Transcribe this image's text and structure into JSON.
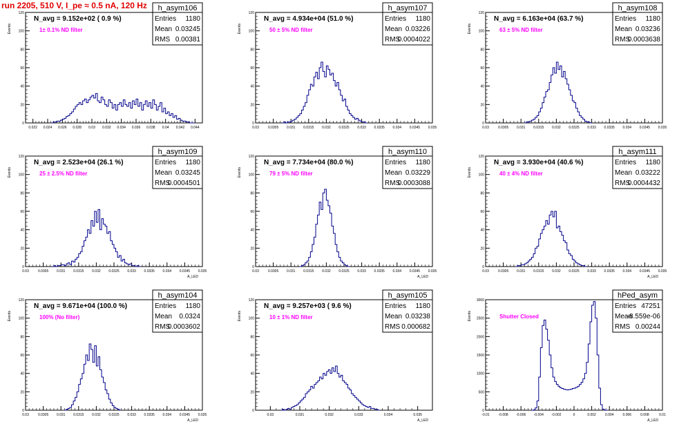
{
  "header": {
    "title": "run 2205,    510 V, I_pe ≈ 0.5 nA, 120 Hz"
  },
  "colors": {
    "title": "#e00000",
    "histogram": "#00008b",
    "filter_label": "#ff00ff",
    "frame": "#000000"
  },
  "chart_data": [
    {
      "type": "histogram",
      "name": "h_asym106",
      "stats": {
        "entries": "1180",
        "mean": "0.03245",
        "rms": "0.00381"
      },
      "navg_label": "N_avg = 9.152e+02 ( 0.9 %)",
      "filter_label": "1± 0.1% ND filter",
      "ylabel": "Events",
      "xlabel": "",
      "xlim": [
        0.021,
        0.045
      ],
      "ylim": [
        0,
        120
      ],
      "xticks": [
        0.022,
        0.024,
        0.026,
        0.028,
        0.03,
        0.032,
        0.034,
        0.036,
        0.038,
        0.04,
        0.042,
        0.044
      ],
      "xticklabels": [
        "0.022",
        "0.024",
        "0.026",
        "0.028",
        "0.03",
        "0.032",
        "0.034",
        "0.036",
        "0.038",
        "0.04",
        "0.042",
        "0.044"
      ],
      "yticks": [
        0,
        20,
        40,
        60,
        80,
        100,
        120
      ],
      "yticklabels": [
        "0",
        "20",
        "40",
        "60",
        "80",
        "100",
        "120"
      ],
      "bin_start": 0.0245,
      "bin_width": 0.00025,
      "values": [
        0,
        1,
        1,
        2,
        2,
        3,
        4,
        5,
        7,
        8,
        10,
        12,
        15,
        18,
        20,
        22,
        20,
        24,
        26,
        22,
        25,
        28,
        30,
        27,
        32,
        24,
        22,
        28,
        25,
        20,
        18,
        25,
        22,
        16,
        20,
        14,
        20,
        22,
        18,
        25,
        20,
        18,
        22,
        16,
        24,
        20,
        26,
        18,
        22,
        14,
        20,
        24,
        18,
        22,
        16,
        25,
        20,
        14,
        18,
        22,
        12,
        16,
        10,
        12,
        8,
        10,
        6,
        8,
        4,
        5,
        3,
        2,
        2,
        1,
        1,
        0,
        0,
        0
      ]
    },
    {
      "type": "histogram",
      "name": "h_asym107",
      "stats": {
        "entries": "1180",
        "mean": "0.03226",
        "rms": "0.0004022"
      },
      "navg_label": "N_avg = 4.934e+04 (51.0 %)",
      "filter_label": "50 ± 5% ND filter",
      "ylabel": "Events",
      "xlabel": "",
      "xlim": [
        0.03,
        0.035
      ],
      "ylim": [
        0,
        120
      ],
      "xticks": [
        0.03,
        0.0305,
        0.031,
        0.0315,
        0.032,
        0.0325,
        0.033,
        0.0335,
        0.034,
        0.0345,
        0.035
      ],
      "xticklabels": [
        "0.03",
        "0.0305",
        "0.031",
        "0.0315",
        "0.032",
        "0.0325",
        "0.033",
        "0.0335",
        "0.034",
        "0.0345",
        "0.035"
      ],
      "yticks": [
        0,
        20,
        40,
        60,
        80,
        100,
        120
      ],
      "yticklabels": [
        "0",
        "20",
        "40",
        "60",
        "80",
        "100",
        "120"
      ],
      "bin_start": 0.03075,
      "bin_width": 5e-05,
      "values": [
        0,
        1,
        0,
        1,
        1,
        2,
        3,
        4,
        6,
        8,
        10,
        14,
        18,
        22,
        30,
        36,
        42,
        40,
        50,
        55,
        48,
        60,
        66,
        56,
        50,
        62,
        58,
        52,
        54,
        46,
        40,
        44,
        36,
        30,
        24,
        26,
        18,
        14,
        10,
        8,
        6,
        4,
        5,
        3,
        2,
        1,
        1,
        0
      ]
    },
    {
      "type": "histogram",
      "name": "h_asym108",
      "stats": {
        "entries": "1180",
        "mean": "0.03236",
        "rms": "0.0003638"
      },
      "navg_label": "N_avg = 6.163e+04 (63.7 %)",
      "filter_label": "63 ± 5% ND filter",
      "ylabel": "Events",
      "xlabel": "",
      "xlim": [
        0.03,
        0.035
      ],
      "ylim": [
        0,
        120
      ],
      "xticks": [
        0.03,
        0.0305,
        0.031,
        0.0315,
        0.032,
        0.0325,
        0.033,
        0.0335,
        0.034,
        0.0345,
        0.035
      ],
      "xticklabels": [
        "0.03",
        "0.0305",
        "0.031",
        "0.0315",
        "0.032",
        "0.0325",
        "0.033",
        "0.0335",
        "0.034",
        "0.0345",
        "0.035"
      ],
      "yticks": [
        0,
        20,
        40,
        60,
        80,
        100,
        120
      ],
      "yticklabels": [
        "0",
        "20",
        "40",
        "60",
        "80",
        "100",
        "120"
      ],
      "bin_start": 0.0311,
      "bin_width": 5e-05,
      "values": [
        0,
        1,
        1,
        2,
        3,
        4,
        6,
        8,
        12,
        16,
        22,
        28,
        34,
        36,
        44,
        52,
        60,
        54,
        66,
        58,
        62,
        50,
        56,
        48,
        42,
        36,
        30,
        24,
        22,
        16,
        12,
        8,
        6,
        4,
        2,
        1,
        1,
        0
      ]
    },
    {
      "type": "histogram",
      "name": "h_asym109",
      "stats": {
        "entries": "1180",
        "mean": "0.03245",
        "rms": "0.0004501"
      },
      "navg_label": "N_avg = 2.523e+04 (26.1 %)",
      "filter_label": "25 ± 2.5% ND filter",
      "ylabel": "Events",
      "xlabel": "A_LED",
      "xlim": [
        0.03,
        0.035
      ],
      "ylim": [
        0,
        120
      ],
      "xticks": [
        0.03,
        0.0305,
        0.031,
        0.0315,
        0.032,
        0.0325,
        0.033,
        0.0335,
        0.034,
        0.0345,
        0.035
      ],
      "xticklabels": [
        "0.03",
        "0.0305",
        "0.031",
        "0.0315",
        "0.032",
        "0.0325",
        "0.033",
        "0.0335",
        "0.034",
        "0.0345",
        "0.035"
      ],
      "yticks": [
        0,
        20,
        40,
        60,
        80,
        100,
        120
      ],
      "yticklabels": [
        "0",
        "20",
        "40",
        "60",
        "80",
        "100",
        "120"
      ],
      "bin_start": 0.03075,
      "bin_width": 5e-05,
      "values": [
        0,
        1,
        0,
        1,
        1,
        2,
        2,
        1,
        3,
        4,
        2,
        6,
        5,
        8,
        10,
        14,
        16,
        22,
        28,
        32,
        40,
        36,
        50,
        44,
        60,
        48,
        62,
        40,
        52,
        46,
        44,
        36,
        38,
        28,
        24,
        20,
        16,
        10,
        12,
        6,
        8,
        4,
        3,
        2,
        3,
        1,
        1,
        0,
        1,
        0
      ]
    },
    {
      "type": "histogram",
      "name": "h_asym110",
      "stats": {
        "entries": "1180",
        "mean": "0.03229",
        "rms": "0.0003088"
      },
      "navg_label": "N_avg = 7.734e+04 (80.0 %)",
      "filter_label": "79 ± 5% ND filter",
      "ylabel": "Events",
      "xlabel": "A_LED",
      "xlim": [
        0.03,
        0.035
      ],
      "ylim": [
        0,
        120
      ],
      "xticks": [
        0.03,
        0.0305,
        0.031,
        0.0315,
        0.032,
        0.0325,
        0.033,
        0.0335,
        0.034,
        0.0345,
        0.035
      ],
      "xticklabels": [
        "0.03",
        "0.0305",
        "0.031",
        "0.0315",
        "0.032",
        "0.0325",
        "0.033",
        "0.0335",
        "0.034",
        "0.0345",
        "0.035"
      ],
      "yticks": [
        0,
        20,
        40,
        60,
        80,
        100,
        120
      ],
      "yticklabels": [
        "0",
        "20",
        "40",
        "60",
        "80",
        "100",
        "120"
      ],
      "bin_start": 0.03125,
      "bin_width": 5e-05,
      "values": [
        0,
        1,
        2,
        4,
        6,
        10,
        16,
        24,
        32,
        46,
        56,
        70,
        62,
        80,
        84,
        72,
        66,
        58,
        44,
        36,
        24,
        16,
        10,
        6,
        4,
        2,
        1,
        0
      ]
    },
    {
      "type": "histogram",
      "name": "h_asym111",
      "stats": {
        "entries": "1180",
        "mean": "0.03222",
        "rms": "0.0004432"
      },
      "navg_label": "N_avg = 3.930e+04 (40.6 %)",
      "filter_label": "40 ± 4% ND filter",
      "ylabel": "Events",
      "xlabel": "A_LED",
      "xlim": [
        0.03,
        0.035
      ],
      "ylim": [
        0,
        120
      ],
      "xticks": [
        0.03,
        0.0305,
        0.031,
        0.0315,
        0.032,
        0.0325,
        0.033,
        0.0335,
        0.034,
        0.0345,
        0.035
      ],
      "xticklabels": [
        "0.03",
        "0.0305",
        "0.031",
        "0.0315",
        "0.032",
        "0.0325",
        "0.033",
        "0.0335",
        "0.034",
        "0.0345",
        "0.035"
      ],
      "yticks": [
        0,
        20,
        40,
        60,
        80,
        100,
        120
      ],
      "yticklabels": [
        "0",
        "20",
        "40",
        "60",
        "80",
        "100",
        "120"
      ],
      "bin_start": 0.03085,
      "bin_width": 5e-05,
      "values": [
        0,
        1,
        1,
        2,
        2,
        3,
        4,
        6,
        8,
        10,
        14,
        20,
        22,
        30,
        36,
        40,
        44,
        50,
        46,
        56,
        60,
        54,
        60,
        42,
        44,
        38,
        34,
        28,
        26,
        18,
        14,
        12,
        8,
        6,
        4,
        3,
        2,
        1,
        1,
        0
      ]
    },
    {
      "type": "histogram",
      "name": "h_asym104",
      "stats": {
        "entries": "1180",
        "mean": "0.0324",
        "rms": "0.0003602"
      },
      "navg_label": "N_avg = 9.671e+04 (100.0 %)",
      "filter_label": "100% (No filter)",
      "ylabel": "Events",
      "xlabel": "A_LED",
      "xlim": [
        0.03,
        0.035
      ],
      "ylim": [
        0,
        120
      ],
      "xticks": [
        0.03,
        0.0305,
        0.031,
        0.0315,
        0.032,
        0.0325,
        0.033,
        0.0335,
        0.034,
        0.0345,
        0.035
      ],
      "xticklabels": [
        "0.03",
        "0.0305",
        "0.031",
        "0.0315",
        "0.032",
        "0.0325",
        "0.033",
        "0.0335",
        "0.034",
        "0.0345",
        "0.035"
      ],
      "yticks": [
        0,
        20,
        40,
        60,
        80,
        100,
        120
      ],
      "yticklabels": [
        "0",
        "20",
        "40",
        "60",
        "80",
        "100",
        "120"
      ],
      "bin_start": 0.0311,
      "bin_width": 5e-05,
      "values": [
        0,
        1,
        2,
        3,
        6,
        10,
        14,
        20,
        28,
        34,
        40,
        50,
        60,
        54,
        72,
        66,
        52,
        70,
        48,
        58,
        44,
        36,
        30,
        22,
        18,
        12,
        8,
        5,
        3,
        2,
        1,
        0
      ]
    },
    {
      "type": "histogram",
      "name": "h_asym105",
      "stats": {
        "entries": "1180",
        "mean": "0.03238",
        "rms": "0.000682"
      },
      "navg_label": "N_avg = 9.257e+03 ( 9.6 %)",
      "filter_label": "10 ± 1% ND filter",
      "ylabel": "Events",
      "xlabel": "A_LED",
      "xlim": [
        0.0295,
        0.0355
      ],
      "ylim": [
        0,
        120
      ],
      "xticks": [
        0.03,
        0.031,
        0.032,
        0.033,
        0.034,
        0.035
      ],
      "xticklabels": [
        "0.03",
        "0.031",
        "0.032",
        "0.033",
        "0.034",
        "0.035"
      ],
      "yticks": [
        0,
        20,
        40,
        60,
        80,
        100,
        120
      ],
      "yticklabels": [
        "0",
        "20",
        "40",
        "60",
        "80",
        "100",
        "120"
      ],
      "bin_start": 0.03035,
      "bin_width": 6e-05,
      "values": [
        0,
        1,
        0,
        1,
        2,
        1,
        3,
        4,
        5,
        6,
        8,
        10,
        12,
        14,
        18,
        20,
        22,
        26,
        24,
        28,
        30,
        32,
        36,
        34,
        40,
        38,
        42,
        44,
        40,
        46,
        42,
        48,
        40,
        36,
        38,
        32,
        30,
        28,
        24,
        22,
        18,
        16,
        14,
        12,
        10,
        8,
        6,
        5,
        4,
        3,
        4,
        2,
        2,
        1,
        1,
        0
      ]
    },
    {
      "type": "histogram",
      "name": "hPed_asym",
      "stats": {
        "entries": "47251",
        "mean": "-8.559e-06",
        "rms": "0.00244"
      },
      "navg_label": "",
      "filter_label": "Shutter Closed",
      "ylabel": "Events",
      "xlabel": "A_LED",
      "xlim": [
        -0.01,
        0.01
      ],
      "ylim": [
        0,
        3000
      ],
      "xticks": [
        -0.01,
        -0.008,
        -0.006,
        -0.004,
        -0.002,
        0,
        0.002,
        0.004,
        0.006,
        0.008,
        0.01
      ],
      "xticklabels": [
        "-0.01",
        "-0.008",
        "-0.006",
        "-0.004",
        "-0.002",
        "0",
        "0.002",
        "0.004",
        "0.006",
        "0.008",
        "0.01"
      ],
      "yticks": [
        0,
        500,
        1000,
        1500,
        2000,
        2500,
        3000
      ],
      "yticklabels": [
        "0",
        "500",
        "1000",
        "1500",
        "2000",
        "2500",
        "3000"
      ],
      "bin_start": -0.0048,
      "bin_width": 0.0002,
      "values": [
        0,
        10,
        60,
        250,
        900,
        1700,
        2300,
        2450,
        2200,
        1900,
        1500,
        1150,
        900,
        780,
        700,
        650,
        610,
        590,
        570,
        560,
        550,
        560,
        570,
        590,
        600,
        620,
        650,
        700,
        760,
        850,
        1000,
        1300,
        1800,
        2400,
        2850,
        2950,
        2500,
        1500,
        600,
        150,
        30,
        5,
        0
      ]
    }
  ]
}
